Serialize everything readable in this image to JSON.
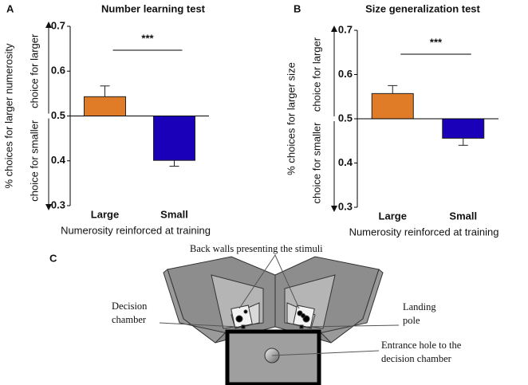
{
  "chart_data": [
    {
      "type": "bar",
      "panel": "A",
      "title": "Number learning test",
      "y_label": "% choices for larger numerosity",
      "x_label": "Numerosity reinforced at training",
      "annotation_up": "choice for larger",
      "annotation_down": "choice for smaller",
      "categories": [
        "Large",
        "Small"
      ],
      "values": [
        0.543,
        0.401
      ],
      "errors": [
        0.024,
        0.013
      ],
      "colors": [
        "#e07b27",
        "#1a00b8"
      ],
      "baseline": 0.5,
      "ylim": [
        0.3,
        0.7
      ],
      "yticks": [
        0.3,
        0.4,
        0.5,
        0.6,
        0.7
      ],
      "significance": "***"
    },
    {
      "type": "bar",
      "panel": "B",
      "title": "Size generalization test",
      "y_label": "% choices for larger size",
      "x_label": "Numerosity reinforced at training",
      "annotation_up": "choice for larger",
      "annotation_down": "choice for smaller",
      "categories": [
        "Large",
        "Small"
      ],
      "values": [
        0.557,
        0.456
      ],
      "errors": [
        0.018,
        0.016
      ],
      "colors": [
        "#e07b27",
        "#1a00b8"
      ],
      "baseline": 0.5,
      "ylim": [
        0.3,
        0.7
      ],
      "yticks": [
        0.3,
        0.4,
        0.5,
        0.6,
        0.7
      ],
      "significance": "***"
    }
  ],
  "diagram": {
    "panel": "C",
    "back_walls": "Back walls presenting the stimuli",
    "decision_chamber": [
      "Decision",
      "chamber"
    ],
    "landing_pole": [
      "Landing",
      "pole"
    ],
    "entrance_hole": [
      "Entrance hole to the",
      "decision chamber"
    ]
  }
}
